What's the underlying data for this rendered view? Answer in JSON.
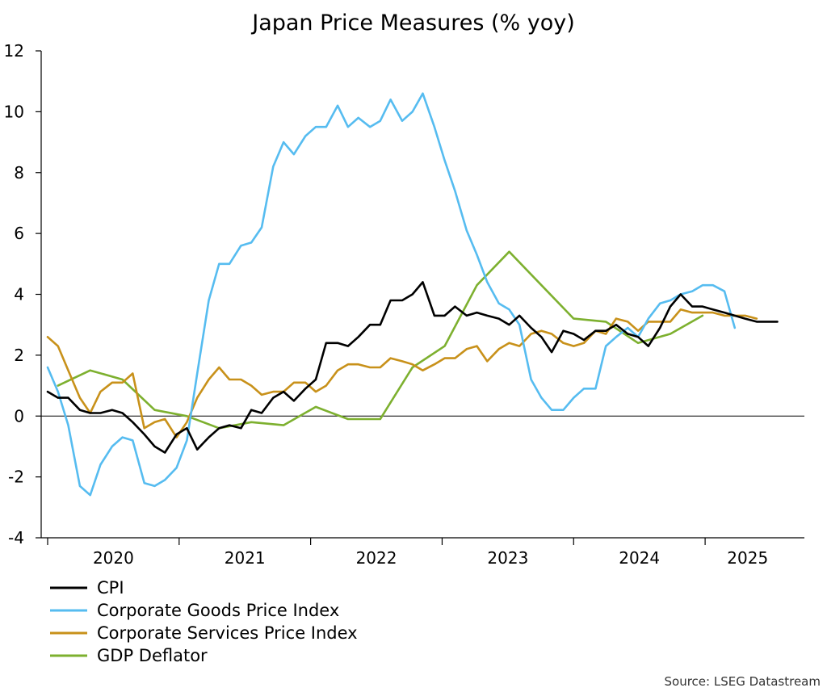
{
  "chart_data": {
    "type": "line",
    "title": "Japan Price Measures (% yoy)",
    "xlabel": "",
    "ylabel": "",
    "ylim": [
      -4,
      12
    ],
    "yticks": [
      12,
      10,
      8,
      6,
      4,
      2,
      0,
      -2,
      -4
    ],
    "xlim": [
      2019.62,
      2025.54
    ],
    "x_tick_boundaries": [
      2019.67,
      2020.69,
      2021.71,
      2022.73,
      2023.75,
      2024.77
    ],
    "xticks": [
      {
        "label": "2020",
        "x": 2020.18
      },
      {
        "label": "2021",
        "x": 2021.2
      },
      {
        "label": "2022",
        "x": 2022.22
      },
      {
        "label": "2023",
        "x": 2023.24
      },
      {
        "label": "2024",
        "x": 2024.26
      },
      {
        "label": "2025",
        "x": 2025.1
      }
    ],
    "grid": false,
    "zero_line": true,
    "legend_position": "bottom-left",
    "source": "Source: LSEG Datastream",
    "series": [
      {
        "name": "CPI",
        "color": "#000000",
        "x": [
          2019.67,
          2019.75,
          2019.83,
          2019.92,
          2020.0,
          2020.08,
          2020.17,
          2020.25,
          2020.33,
          2020.42,
          2020.5,
          2020.58,
          2020.67,
          2020.75,
          2020.83,
          2020.92,
          2021.0,
          2021.08,
          2021.17,
          2021.25,
          2021.33,
          2021.42,
          2021.5,
          2021.58,
          2021.67,
          2021.75,
          2021.83,
          2021.92,
          2022.0,
          2022.08,
          2022.17,
          2022.25,
          2022.33,
          2022.42,
          2022.5,
          2022.58,
          2022.67,
          2022.75,
          2022.83,
          2022.92,
          2023.0,
          2023.08,
          2023.17,
          2023.25,
          2023.33,
          2023.42,
          2023.5,
          2023.58,
          2023.67,
          2023.75,
          2023.83,
          2023.92,
          2024.0,
          2024.08,
          2024.17,
          2024.25,
          2024.33,
          2024.42,
          2024.5,
          2024.58,
          2024.67,
          2024.75,
          2024.83,
          2024.92,
          2025.0,
          2025.08,
          2025.17,
          2025.25,
          2025.33
        ],
        "values": [
          0.8,
          0.6,
          0.6,
          0.2,
          0.1,
          0.1,
          0.2,
          0.1,
          -0.2,
          -0.6,
          -1.0,
          -1.2,
          -0.6,
          -0.4,
          -1.1,
          -0.7,
          -0.4,
          -0.3,
          -0.4,
          0.2,
          0.1,
          0.6,
          0.8,
          0.5,
          0.9,
          1.2,
          2.4,
          2.4,
          2.3,
          2.6,
          3.0,
          3.0,
          3.8,
          3.8,
          4.0,
          4.4,
          3.3,
          3.3,
          3.6,
          3.3,
          3.4,
          3.3,
          3.2,
          3.0,
          3.3,
          2.9,
          2.6,
          2.1,
          2.8,
          2.7,
          2.5,
          2.8,
          2.8,
          3.0,
          2.7,
          2.6,
          2.3,
          2.9,
          3.6,
          4.0,
          3.6,
          3.6,
          3.5,
          3.4,
          3.3,
          3.2,
          3.1,
          3.1,
          3.1
        ]
      },
      {
        "name": "Corporate Goods Price Index",
        "color": "#56BCF0",
        "x": [
          2019.67,
          2019.75,
          2019.83,
          2019.92,
          2020.0,
          2020.08,
          2020.17,
          2020.25,
          2020.33,
          2020.42,
          2020.5,
          2020.58,
          2020.67,
          2020.75,
          2020.83,
          2020.92,
          2021.0,
          2021.08,
          2021.17,
          2021.25,
          2021.33,
          2021.42,
          2021.5,
          2021.58,
          2021.67,
          2021.75,
          2021.83,
          2021.92,
          2022.0,
          2022.08,
          2022.17,
          2022.25,
          2022.33,
          2022.42,
          2022.5,
          2022.58,
          2022.67,
          2022.75,
          2022.83,
          2022.92,
          2023.0,
          2023.08,
          2023.17,
          2023.25,
          2023.33,
          2023.42,
          2023.5,
          2023.58,
          2023.67,
          2023.75,
          2023.83,
          2023.92,
          2024.0,
          2024.08,
          2024.17,
          2024.25,
          2024.33,
          2024.42,
          2024.5,
          2024.58,
          2024.67,
          2024.75,
          2024.83,
          2024.92,
          2025.0
        ],
        "values": [
          1.6,
          0.8,
          -0.3,
          -2.3,
          -2.6,
          -1.6,
          -1.0,
          -0.7,
          -0.8,
          -2.2,
          -2.3,
          -2.1,
          -1.7,
          -0.8,
          1.4,
          3.8,
          5.0,
          5.0,
          5.6,
          5.7,
          6.2,
          8.2,
          9.0,
          8.6,
          9.2,
          9.5,
          9.5,
          10.2,
          9.5,
          9.8,
          9.5,
          9.7,
          10.4,
          9.7,
          10.0,
          10.6,
          9.5,
          8.4,
          7.4,
          6.1,
          5.3,
          4.4,
          3.7,
          3.5,
          3.0,
          1.2,
          0.6,
          0.2,
          0.2,
          0.6,
          0.9,
          0.9,
          2.3,
          2.6,
          2.9,
          2.6,
          3.2,
          3.7,
          3.8,
          4.0,
          4.1,
          4.3,
          4.3,
          4.1,
          2.9
        ]
      },
      {
        "name": "Corporate Services Price Index",
        "color": "#C8911A",
        "x": [
          2019.67,
          2019.75,
          2019.83,
          2019.92,
          2020.0,
          2020.08,
          2020.17,
          2020.25,
          2020.33,
          2020.42,
          2020.5,
          2020.58,
          2020.67,
          2020.75,
          2020.83,
          2020.92,
          2021.0,
          2021.08,
          2021.17,
          2021.25,
          2021.33,
          2021.42,
          2021.5,
          2021.58,
          2021.67,
          2021.75,
          2021.83,
          2021.92,
          2022.0,
          2022.08,
          2022.17,
          2022.25,
          2022.33,
          2022.42,
          2022.5,
          2022.58,
          2022.67,
          2022.75,
          2022.83,
          2022.92,
          2023.0,
          2023.08,
          2023.17,
          2023.25,
          2023.33,
          2023.42,
          2023.5,
          2023.58,
          2023.67,
          2023.75,
          2023.83,
          2023.92,
          2024.0,
          2024.08,
          2024.17,
          2024.25,
          2024.33,
          2024.42,
          2024.5,
          2024.58,
          2024.67,
          2024.75,
          2024.83,
          2024.92,
          2025.0,
          2025.08,
          2025.17
        ],
        "values": [
          2.6,
          2.3,
          1.5,
          0.6,
          0.1,
          0.8,
          1.1,
          1.1,
          1.4,
          -0.4,
          -0.2,
          -0.1,
          -0.7,
          -0.2,
          0.6,
          1.2,
          1.6,
          1.2,
          1.2,
          1.0,
          0.7,
          0.8,
          0.8,
          1.1,
          1.1,
          0.8,
          1.0,
          1.5,
          1.7,
          1.7,
          1.6,
          1.6,
          1.9,
          1.8,
          1.7,
          1.5,
          1.7,
          1.9,
          1.9,
          2.2,
          2.3,
          1.8,
          2.2,
          2.4,
          2.3,
          2.7,
          2.8,
          2.7,
          2.4,
          2.3,
          2.4,
          2.8,
          2.7,
          3.2,
          3.1,
          2.8,
          3.1,
          3.1,
          3.1,
          3.5,
          3.4,
          3.4,
          3.4,
          3.3,
          3.3,
          3.3,
          3.2
        ]
      },
      {
        "name": "GDP Deflator",
        "color": "#7DB02F",
        "x": [
          2019.75,
          2020.0,
          2020.25,
          2020.5,
          2020.75,
          2021.0,
          2021.25,
          2021.5,
          2021.75,
          2022.0,
          2022.25,
          2022.5,
          2022.75,
          2023.0,
          2023.25,
          2023.5,
          2023.75,
          2024.0,
          2024.25,
          2024.5,
          2024.75
        ],
        "values": [
          1.0,
          1.5,
          1.2,
          0.2,
          0.0,
          -0.4,
          -0.2,
          -0.3,
          0.3,
          -0.1,
          -0.1,
          1.6,
          2.3,
          4.3,
          5.4,
          4.3,
          3.2,
          3.1,
          2.4,
          2.7,
          3.3
        ]
      }
    ]
  }
}
